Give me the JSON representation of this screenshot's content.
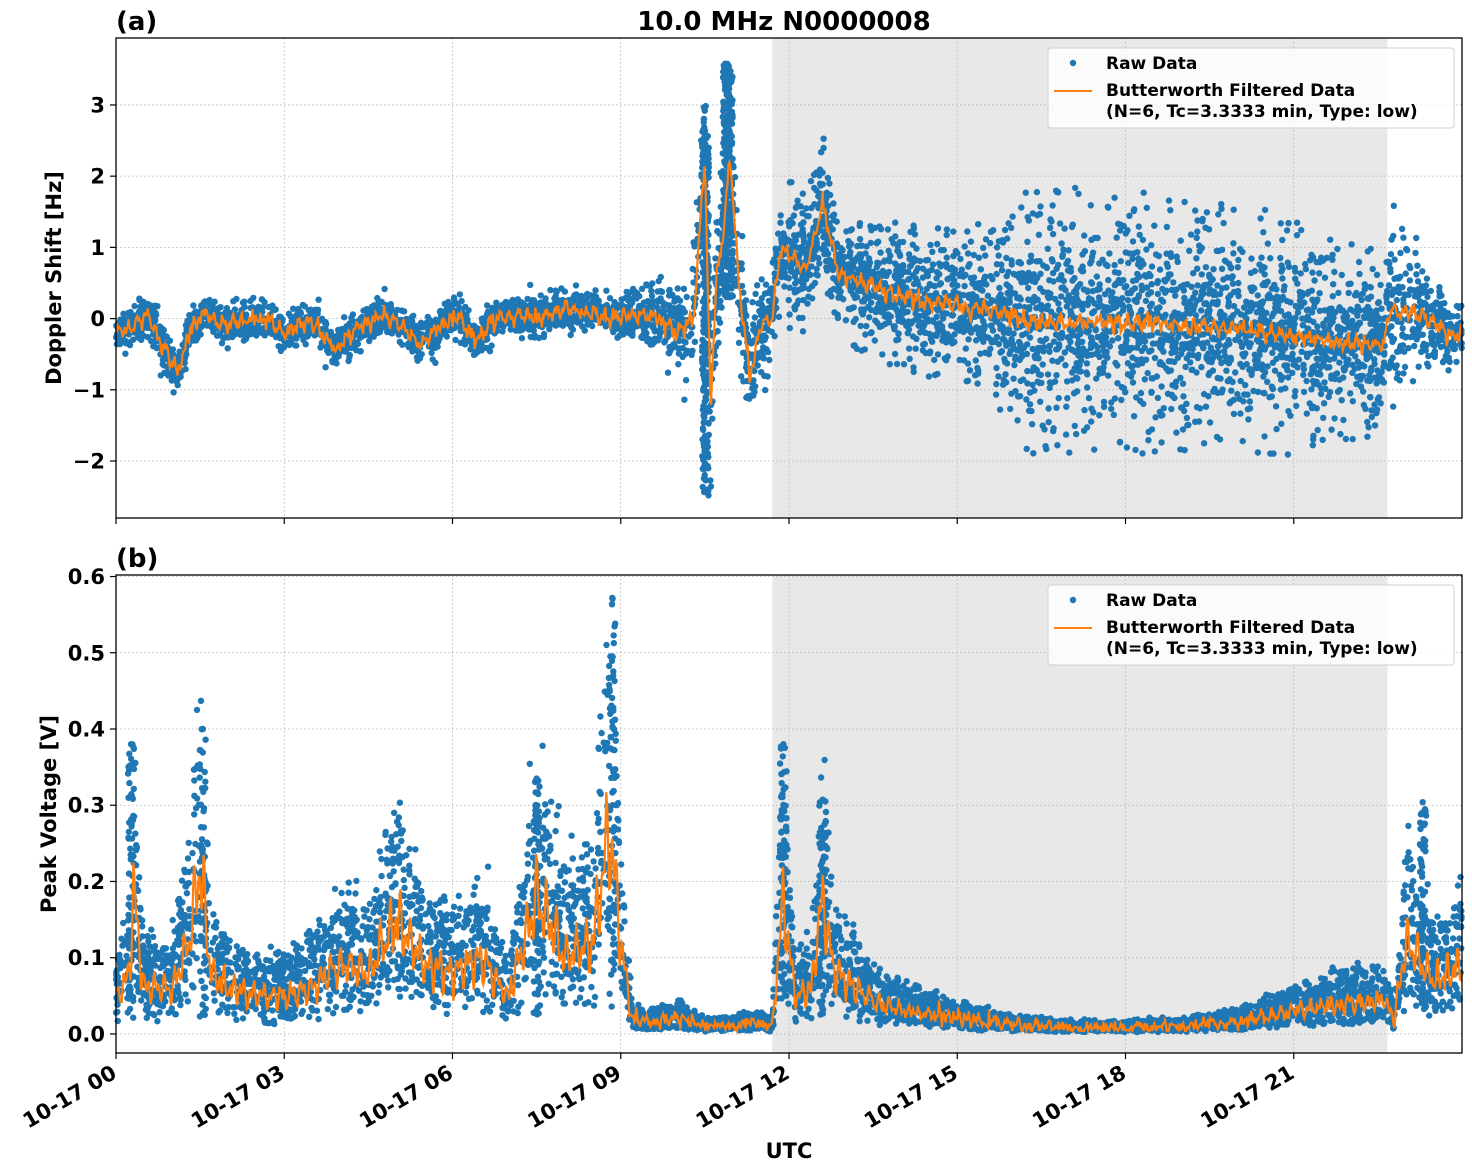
{
  "figure": {
    "title": "10.0 MHz N0000008",
    "xlabel": "UTC"
  },
  "colors": {
    "raw": "#1f77b4",
    "filtered": "#ff7f0e",
    "shade": "#e8e8e8",
    "grid": "#b0b0b0"
  },
  "chart_data": [
    {
      "type": "scatter",
      "panel_label": "(a)",
      "ylabel": "Doppler Shift [Hz]",
      "xlim_hours": [
        0,
        24
      ],
      "ylim": [
        -2.8,
        3.94
      ],
      "yticks": [
        -2,
        -1,
        0,
        1,
        2,
        3
      ],
      "ytick_labels": [
        "−2",
        "−1",
        "0",
        "1",
        "2",
        "3"
      ],
      "grid": true,
      "shaded_span_hours": [
        11.7,
        22.67
      ],
      "legend": {
        "placement": "top-right",
        "entries": [
          {
            "label": "Raw Data",
            "kind": "marker"
          },
          {
            "label": "Butterworth Filtered Data",
            "label2": "(N=6, Tc=3.3333 min, Type: low)",
            "kind": "line"
          }
        ]
      },
      "series": [
        {
          "name": "Raw Data",
          "kind": "scatter"
        },
        {
          "name": "Butterworth Filtered Data",
          "kind": "line"
        }
      ],
      "filtered_anchor_hours": [
        0,
        0.3,
        0.6,
        0.8,
        1.1,
        1.3,
        1.6,
        1.9,
        2.2,
        2.5,
        2.8,
        3.0,
        3.3,
        3.6,
        3.9,
        4.2,
        4.5,
        4.8,
        5.1,
        5.4,
        5.8,
        6.1,
        6.4,
        6.8,
        7.2,
        7.6,
        8.0,
        8.4,
        8.8,
        9.2,
        9.6,
        10.0,
        10.3,
        10.5,
        10.6,
        10.7,
        10.8,
        10.95,
        11.1,
        11.3,
        11.5,
        11.7,
        11.85,
        12.0,
        12.3,
        12.6,
        12.9,
        13.3,
        13.8,
        14.3,
        14.8,
        15.3,
        15.8,
        16.3,
        17.0,
        18.0,
        19.0,
        20.0,
        21.0,
        22.0,
        22.6,
        22.7,
        23.0,
        23.4,
        23.7,
        23.9,
        24.0
      ],
      "filtered_anchor_values": [
        -0.2,
        -0.1,
        0.05,
        -0.35,
        -0.75,
        -0.2,
        0.1,
        -0.1,
        -0.05,
        0.0,
        -0.05,
        -0.25,
        -0.05,
        -0.1,
        -0.45,
        -0.2,
        -0.05,
        0.05,
        -0.1,
        -0.35,
        -0.1,
        0.05,
        -0.3,
        0.0,
        0.05,
        0.0,
        0.15,
        0.1,
        0.0,
        0.05,
        0.05,
        -0.2,
        0.0,
        2.3,
        -1.3,
        0.5,
        1.0,
        2.3,
        0.5,
        -0.8,
        -0.1,
        0.0,
        1.0,
        0.9,
        0.7,
        1.6,
        0.6,
        0.5,
        0.35,
        0.25,
        0.2,
        0.15,
        0.1,
        -0.05,
        -0.05,
        -0.05,
        -0.1,
        -0.15,
        -0.25,
        -0.35,
        -0.35,
        0.1,
        0.1,
        0.0,
        -0.2,
        -0.25,
        -0.2
      ],
      "raw_spread_anchor_hours": [
        0,
        9.0,
        10.0,
        10.5,
        11.0,
        11.7,
        13.0,
        15.5,
        16.3,
        20.5,
        22.6,
        22.7,
        23.5,
        24.0
      ],
      "raw_spread_anchor_values": [
        0.3,
        0.3,
        0.6,
        1.2,
        1.0,
        0.7,
        0.6,
        0.7,
        1.2,
        1.1,
        0.8,
        1.4,
        0.6,
        0.4
      ]
    },
    {
      "type": "scatter",
      "panel_label": "(b)",
      "ylabel": "Peak Voltage [V]",
      "xlim_hours": [
        0,
        24
      ],
      "ylim": [
        -0.025,
        0.602
      ],
      "yticks": [
        0.0,
        0.1,
        0.2,
        0.3,
        0.4,
        0.5,
        0.6
      ],
      "ytick_labels": [
        "0.0",
        "0.1",
        "0.2",
        "0.3",
        "0.4",
        "0.5",
        "0.6"
      ],
      "xticks_hours": [
        0,
        3,
        6,
        9,
        12,
        15,
        18,
        21
      ],
      "xtick_labels": [
        "10-17 00",
        "10-17 03",
        "10-17 06",
        "10-17 09",
        "10-17 12",
        "10-17 15",
        "10-17 18",
        "10-17 21"
      ],
      "grid": true,
      "shaded_span_hours": [
        11.7,
        22.67
      ],
      "legend": {
        "placement": "top-right",
        "entries": [
          {
            "label": "Raw Data",
            "kind": "marker"
          },
          {
            "label": "Butterworth Filtered Data",
            "label2": "(N=6, Tc=3.3333 min, Type: low)",
            "kind": "line"
          }
        ]
      },
      "series": [
        {
          "name": "Raw Data",
          "kind": "scatter"
        },
        {
          "name": "Butterworth Filtered Data",
          "kind": "line"
        }
      ],
      "filtered_anchor_hours": [
        0,
        0.25,
        0.3,
        0.5,
        1.0,
        1.3,
        1.5,
        1.7,
        2.0,
        2.5,
        3.0,
        3.5,
        4.0,
        4.5,
        5.0,
        5.5,
        6.0,
        6.5,
        7.0,
        7.5,
        8.0,
        8.5,
        8.8,
        9.0,
        9.2,
        9.4,
        10.0,
        10.5,
        11.0,
        11.4,
        11.7,
        11.9,
        12.1,
        12.4,
        12.6,
        12.8,
        13.2,
        13.6,
        14.2,
        15.0,
        16.0,
        17.0,
        18.0,
        19.0,
        20.0,
        21.0,
        22.0,
        22.6,
        22.8,
        23.0,
        23.5,
        24.0
      ],
      "filtered_anchor_values": [
        0.05,
        0.08,
        0.19,
        0.06,
        0.06,
        0.12,
        0.22,
        0.08,
        0.06,
        0.05,
        0.05,
        0.06,
        0.09,
        0.08,
        0.15,
        0.09,
        0.08,
        0.1,
        0.05,
        0.18,
        0.1,
        0.12,
        0.27,
        0.12,
        0.02,
        0.015,
        0.02,
        0.01,
        0.01,
        0.015,
        0.01,
        0.18,
        0.05,
        0.06,
        0.18,
        0.08,
        0.06,
        0.04,
        0.03,
        0.02,
        0.012,
        0.008,
        0.008,
        0.01,
        0.015,
        0.03,
        0.04,
        0.045,
        0.02,
        0.12,
        0.07,
        0.09
      ],
      "raw_peak_outliers": [
        {
          "hour": 0.27,
          "value": 0.38
        },
        {
          "hour": 1.55,
          "value": 0.4
        },
        {
          "hour": 7.5,
          "value": 0.335
        },
        {
          "hour": 8.85,
          "value": 0.572
        },
        {
          "hour": 11.9,
          "value": 0.38
        },
        {
          "hour": 12.6,
          "value": 0.307
        },
        {
          "hour": 23.3,
          "value": 0.304
        }
      ]
    }
  ]
}
